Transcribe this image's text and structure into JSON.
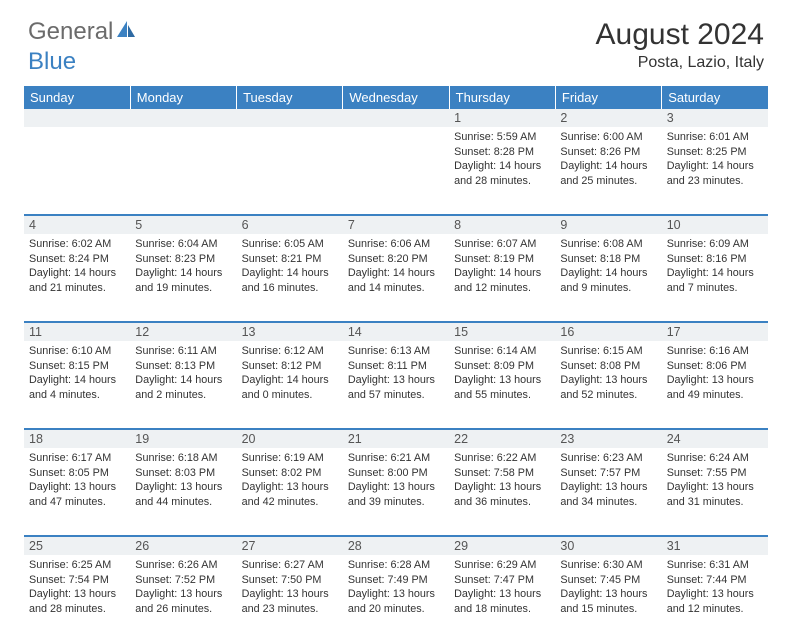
{
  "logo": {
    "text1": "General",
    "text2": "Blue",
    "color1": "#6b6b6b",
    "color2": "#3b81c2"
  },
  "title": "August 2024",
  "location": "Posta, Lazio, Italy",
  "header_bg": "#3b81c2",
  "daynum_bg": "#eef1f3",
  "rule_color": "#3b81c2",
  "weekdays": [
    "Sunday",
    "Monday",
    "Tuesday",
    "Wednesday",
    "Thursday",
    "Friday",
    "Saturday"
  ],
  "weeks": [
    {
      "nums": [
        "",
        "",
        "",
        "",
        "1",
        "2",
        "3"
      ],
      "cells": [
        {},
        {},
        {},
        {},
        {
          "sunrise": "5:59 AM",
          "sunset": "8:28 PM",
          "daylight": "14 hours and 28 minutes."
        },
        {
          "sunrise": "6:00 AM",
          "sunset": "8:26 PM",
          "daylight": "14 hours and 25 minutes."
        },
        {
          "sunrise": "6:01 AM",
          "sunset": "8:25 PM",
          "daylight": "14 hours and 23 minutes."
        }
      ]
    },
    {
      "nums": [
        "4",
        "5",
        "6",
        "7",
        "8",
        "9",
        "10"
      ],
      "cells": [
        {
          "sunrise": "6:02 AM",
          "sunset": "8:24 PM",
          "daylight": "14 hours and 21 minutes."
        },
        {
          "sunrise": "6:04 AM",
          "sunset": "8:23 PM",
          "daylight": "14 hours and 19 minutes."
        },
        {
          "sunrise": "6:05 AM",
          "sunset": "8:21 PM",
          "daylight": "14 hours and 16 minutes."
        },
        {
          "sunrise": "6:06 AM",
          "sunset": "8:20 PM",
          "daylight": "14 hours and 14 minutes."
        },
        {
          "sunrise": "6:07 AM",
          "sunset": "8:19 PM",
          "daylight": "14 hours and 12 minutes."
        },
        {
          "sunrise": "6:08 AM",
          "sunset": "8:18 PM",
          "daylight": "14 hours and 9 minutes."
        },
        {
          "sunrise": "6:09 AM",
          "sunset": "8:16 PM",
          "daylight": "14 hours and 7 minutes."
        }
      ]
    },
    {
      "nums": [
        "11",
        "12",
        "13",
        "14",
        "15",
        "16",
        "17"
      ],
      "cells": [
        {
          "sunrise": "6:10 AM",
          "sunset": "8:15 PM",
          "daylight": "14 hours and 4 minutes."
        },
        {
          "sunrise": "6:11 AM",
          "sunset": "8:13 PM",
          "daylight": "14 hours and 2 minutes."
        },
        {
          "sunrise": "6:12 AM",
          "sunset": "8:12 PM",
          "daylight": "14 hours and 0 minutes."
        },
        {
          "sunrise": "6:13 AM",
          "sunset": "8:11 PM",
          "daylight": "13 hours and 57 minutes."
        },
        {
          "sunrise": "6:14 AM",
          "sunset": "8:09 PM",
          "daylight": "13 hours and 55 minutes."
        },
        {
          "sunrise": "6:15 AM",
          "sunset": "8:08 PM",
          "daylight": "13 hours and 52 minutes."
        },
        {
          "sunrise": "6:16 AM",
          "sunset": "8:06 PM",
          "daylight": "13 hours and 49 minutes."
        }
      ]
    },
    {
      "nums": [
        "18",
        "19",
        "20",
        "21",
        "22",
        "23",
        "24"
      ],
      "cells": [
        {
          "sunrise": "6:17 AM",
          "sunset": "8:05 PM",
          "daylight": "13 hours and 47 minutes."
        },
        {
          "sunrise": "6:18 AM",
          "sunset": "8:03 PM",
          "daylight": "13 hours and 44 minutes."
        },
        {
          "sunrise": "6:19 AM",
          "sunset": "8:02 PM",
          "daylight": "13 hours and 42 minutes."
        },
        {
          "sunrise": "6:21 AM",
          "sunset": "8:00 PM",
          "daylight": "13 hours and 39 minutes."
        },
        {
          "sunrise": "6:22 AM",
          "sunset": "7:58 PM",
          "daylight": "13 hours and 36 minutes."
        },
        {
          "sunrise": "6:23 AM",
          "sunset": "7:57 PM",
          "daylight": "13 hours and 34 minutes."
        },
        {
          "sunrise": "6:24 AM",
          "sunset": "7:55 PM",
          "daylight": "13 hours and 31 minutes."
        }
      ]
    },
    {
      "nums": [
        "25",
        "26",
        "27",
        "28",
        "29",
        "30",
        "31"
      ],
      "cells": [
        {
          "sunrise": "6:25 AM",
          "sunset": "7:54 PM",
          "daylight": "13 hours and 28 minutes."
        },
        {
          "sunrise": "6:26 AM",
          "sunset": "7:52 PM",
          "daylight": "13 hours and 26 minutes."
        },
        {
          "sunrise": "6:27 AM",
          "sunset": "7:50 PM",
          "daylight": "13 hours and 23 minutes."
        },
        {
          "sunrise": "6:28 AM",
          "sunset": "7:49 PM",
          "daylight": "13 hours and 20 minutes."
        },
        {
          "sunrise": "6:29 AM",
          "sunset": "7:47 PM",
          "daylight": "13 hours and 18 minutes."
        },
        {
          "sunrise": "6:30 AM",
          "sunset": "7:45 PM",
          "daylight": "13 hours and 15 minutes."
        },
        {
          "sunrise": "6:31 AM",
          "sunset": "7:44 PM",
          "daylight": "13 hours and 12 minutes."
        }
      ]
    }
  ]
}
